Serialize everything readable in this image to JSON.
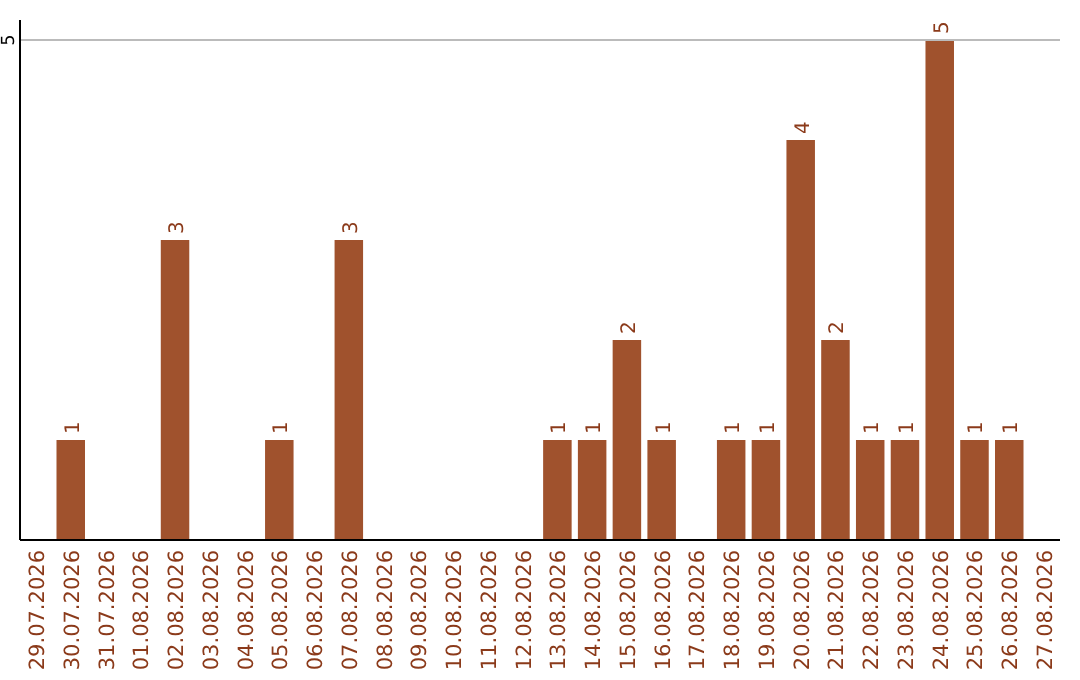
{
  "chart_data": {
    "type": "bar",
    "categories": [
      "29.07.2026",
      "30.07.2026",
      "31.07.2026",
      "01.08.2026",
      "02.08.2026",
      "03.08.2026",
      "04.08.2026",
      "05.08.2026",
      "06.08.2026",
      "07.08.2026",
      "08.08.2026",
      "09.08.2026",
      "10.08.2026",
      "11.08.2026",
      "12.08.2026",
      "13.08.2026",
      "14.08.2026",
      "15.08.2026",
      "16.08.2026",
      "17.08.2026",
      "18.08.2026",
      "19.08.2026",
      "20.08.2026",
      "21.08.2026",
      "22.08.2026",
      "23.08.2026",
      "24.08.2026",
      "25.08.2026",
      "26.08.2026",
      "27.08.2026"
    ],
    "values": [
      0,
      1,
      0,
      0,
      3,
      0,
      0,
      1,
      0,
      3,
      0,
      0,
      0,
      0,
      0,
      1,
      1,
      2,
      1,
      0,
      1,
      1,
      4,
      2,
      1,
      1,
      5,
      1,
      1,
      0
    ],
    "value_labels": [
      null,
      "1",
      null,
      null,
      "3",
      null,
      null,
      "1",
      null,
      "3",
      null,
      null,
      null,
      null,
      null,
      "1",
      "1",
      "2",
      "1",
      null,
      "1",
      "1",
      "4",
      "2",
      "1",
      "1",
      "5",
      "1",
      "1",
      null
    ],
    "color": "#a0522d",
    "ylim": [
      0,
      5.2
    ],
    "yticks": [
      5
    ],
    "grid": "y"
  }
}
